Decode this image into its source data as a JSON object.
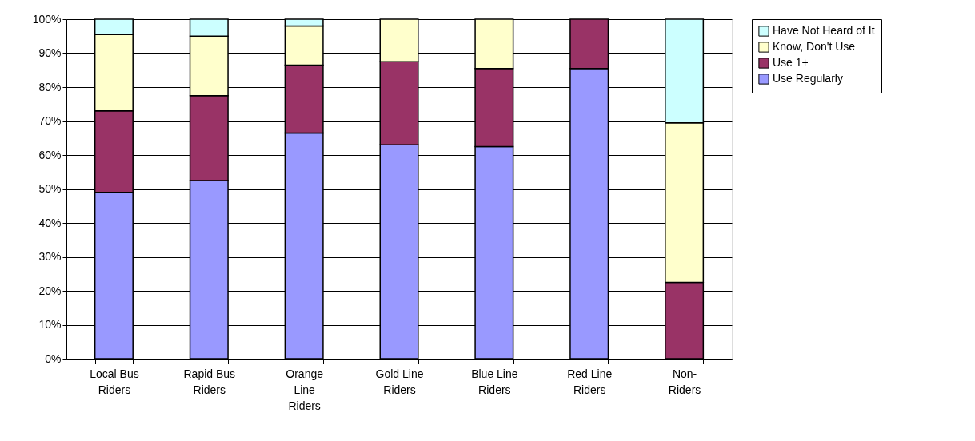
{
  "chart_data": {
    "type": "bar",
    "stacked": true,
    "categories": [
      "Local Bus Riders",
      "Rapid Bus Riders",
      "Orange Line Riders",
      "Gold Line Riders",
      "Blue Line Riders",
      "Red Line Riders",
      "Non-Riders"
    ],
    "series": [
      {
        "name": "Use Regularly",
        "color": "#9999ff",
        "values": [
          49,
          52.5,
          66.5,
          63,
          62.5,
          85.5,
          null
        ]
      },
      {
        "name": "Use 1+",
        "color": "#993366",
        "values": [
          24,
          25,
          20,
          24.5,
          23,
          14.5,
          22.5
        ]
      },
      {
        "name": "Know, Don't Use",
        "color": "#ffffcc",
        "values": [
          22.5,
          17.5,
          11.5,
          12.5,
          14.5,
          null,
          47
        ]
      },
      {
        "name": "Have Not Heard of It",
        "color": "#ccffff",
        "values": [
          4.5,
          5,
          2,
          null,
          null,
          null,
          30.5
        ]
      }
    ],
    "ylim": [
      0,
      100
    ],
    "yticks": [
      {
        "value": 0,
        "label": "0%"
      },
      {
        "value": 10,
        "label": "10%"
      },
      {
        "value": 20,
        "label": "20%"
      },
      {
        "value": 30,
        "label": "30%"
      },
      {
        "value": 40,
        "label": "40%"
      },
      {
        "value": 50,
        "label": "50%"
      },
      {
        "value": 60,
        "label": "60%"
      },
      {
        "value": 70,
        "label": "70%"
      },
      {
        "value": 80,
        "label": "80%"
      },
      {
        "value": 90,
        "label": "90%"
      },
      {
        "value": 100,
        "label": "100%"
      }
    ],
    "grid": "y",
    "legend": "right"
  }
}
